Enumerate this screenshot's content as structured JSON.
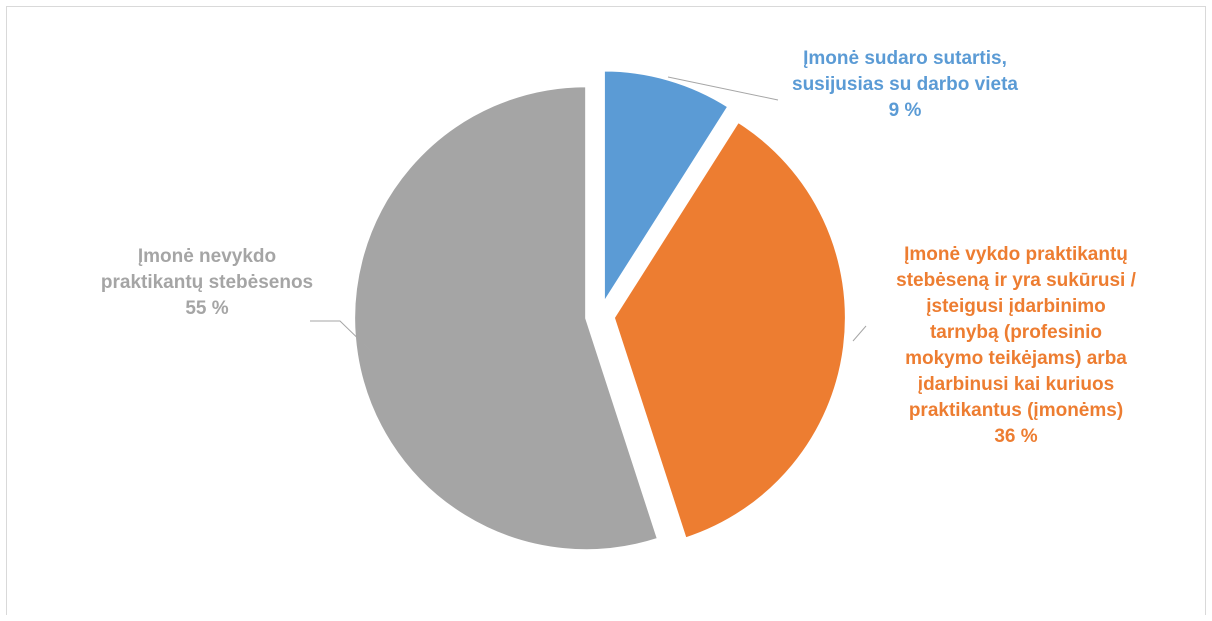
{
  "chart_data": {
    "type": "pie",
    "slices": [
      {
        "label_lines": [
          "Įmonė sudaro sutartis,",
          "susijusias su darbo vieta"
        ],
        "value_text": "9 %",
        "value": 9,
        "color": "#5b9bd5"
      },
      {
        "label_lines": [
          "Įmonė vykdo praktikantų",
          "stebėseną ir yra sukūrusi /",
          "įsteigusi įdarbinimo",
          "tarnybą (profesinio",
          "mokymo teikėjams) arba",
          "įdarbinusi kai kuriuos",
          "praktikantus (įmonėms)"
        ],
        "value_text": "36 %",
        "value": 36,
        "color": "#ed7d31"
      },
      {
        "label_lines": [
          "Įmonė nevykdo",
          "praktikantų stebėsenos"
        ],
        "value_text": "55 %",
        "value": 55,
        "color": "#a5a5a5"
      }
    ],
    "leader_line_color": "#a6a6a6"
  }
}
